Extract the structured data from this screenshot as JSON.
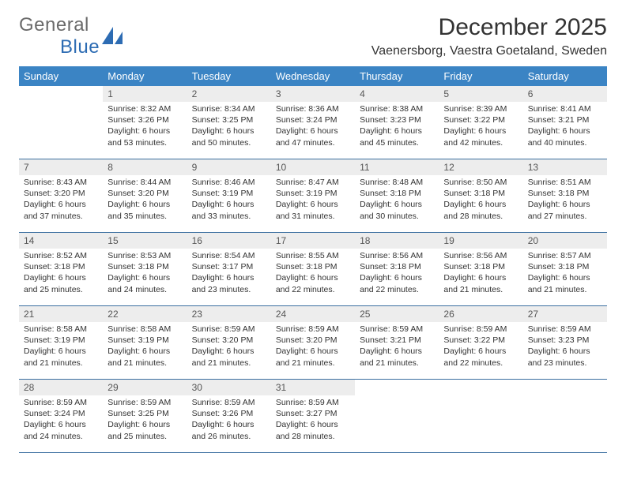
{
  "brand": {
    "word1": "General",
    "word2": "Blue"
  },
  "title": "December 2025",
  "location": "Vaenersborg, Vaestra Goetaland, Sweden",
  "colors": {
    "header_bg": "#3b84c4",
    "header_text": "#ffffff",
    "daynum_bg": "#ededed",
    "cell_border": "#3b6fa0",
    "brand_gray": "#6a6a6a",
    "brand_blue": "#2d6cb3",
    "text": "#333333",
    "background": "#ffffff"
  },
  "typography": {
    "title_fontsize": 30,
    "location_fontsize": 16,
    "header_fontsize": 13,
    "daynum_fontsize": 12,
    "body_fontsize": 10.5
  },
  "weekdays": [
    "Sunday",
    "Monday",
    "Tuesday",
    "Wednesday",
    "Thursday",
    "Friday",
    "Saturday"
  ],
  "start_offset": 1,
  "days": [
    {
      "n": 1,
      "sunrise": "8:32 AM",
      "sunset": "3:26 PM",
      "daylight": "6 hours and 53 minutes."
    },
    {
      "n": 2,
      "sunrise": "8:34 AM",
      "sunset": "3:25 PM",
      "daylight": "6 hours and 50 minutes."
    },
    {
      "n": 3,
      "sunrise": "8:36 AM",
      "sunset": "3:24 PM",
      "daylight": "6 hours and 47 minutes."
    },
    {
      "n": 4,
      "sunrise": "8:38 AM",
      "sunset": "3:23 PM",
      "daylight": "6 hours and 45 minutes."
    },
    {
      "n": 5,
      "sunrise": "8:39 AM",
      "sunset": "3:22 PM",
      "daylight": "6 hours and 42 minutes."
    },
    {
      "n": 6,
      "sunrise": "8:41 AM",
      "sunset": "3:21 PM",
      "daylight": "6 hours and 40 minutes."
    },
    {
      "n": 7,
      "sunrise": "8:43 AM",
      "sunset": "3:20 PM",
      "daylight": "6 hours and 37 minutes."
    },
    {
      "n": 8,
      "sunrise": "8:44 AM",
      "sunset": "3:20 PM",
      "daylight": "6 hours and 35 minutes."
    },
    {
      "n": 9,
      "sunrise": "8:46 AM",
      "sunset": "3:19 PM",
      "daylight": "6 hours and 33 minutes."
    },
    {
      "n": 10,
      "sunrise": "8:47 AM",
      "sunset": "3:19 PM",
      "daylight": "6 hours and 31 minutes."
    },
    {
      "n": 11,
      "sunrise": "8:48 AM",
      "sunset": "3:18 PM",
      "daylight": "6 hours and 30 minutes."
    },
    {
      "n": 12,
      "sunrise": "8:50 AM",
      "sunset": "3:18 PM",
      "daylight": "6 hours and 28 minutes."
    },
    {
      "n": 13,
      "sunrise": "8:51 AM",
      "sunset": "3:18 PM",
      "daylight": "6 hours and 27 minutes."
    },
    {
      "n": 14,
      "sunrise": "8:52 AM",
      "sunset": "3:18 PM",
      "daylight": "6 hours and 25 minutes."
    },
    {
      "n": 15,
      "sunrise": "8:53 AM",
      "sunset": "3:18 PM",
      "daylight": "6 hours and 24 minutes."
    },
    {
      "n": 16,
      "sunrise": "8:54 AM",
      "sunset": "3:17 PM",
      "daylight": "6 hours and 23 minutes."
    },
    {
      "n": 17,
      "sunrise": "8:55 AM",
      "sunset": "3:18 PM",
      "daylight": "6 hours and 22 minutes."
    },
    {
      "n": 18,
      "sunrise": "8:56 AM",
      "sunset": "3:18 PM",
      "daylight": "6 hours and 22 minutes."
    },
    {
      "n": 19,
      "sunrise": "8:56 AM",
      "sunset": "3:18 PM",
      "daylight": "6 hours and 21 minutes."
    },
    {
      "n": 20,
      "sunrise": "8:57 AM",
      "sunset": "3:18 PM",
      "daylight": "6 hours and 21 minutes."
    },
    {
      "n": 21,
      "sunrise": "8:58 AM",
      "sunset": "3:19 PM",
      "daylight": "6 hours and 21 minutes."
    },
    {
      "n": 22,
      "sunrise": "8:58 AM",
      "sunset": "3:19 PM",
      "daylight": "6 hours and 21 minutes."
    },
    {
      "n": 23,
      "sunrise": "8:59 AM",
      "sunset": "3:20 PM",
      "daylight": "6 hours and 21 minutes."
    },
    {
      "n": 24,
      "sunrise": "8:59 AM",
      "sunset": "3:20 PM",
      "daylight": "6 hours and 21 minutes."
    },
    {
      "n": 25,
      "sunrise": "8:59 AM",
      "sunset": "3:21 PM",
      "daylight": "6 hours and 21 minutes."
    },
    {
      "n": 26,
      "sunrise": "8:59 AM",
      "sunset": "3:22 PM",
      "daylight": "6 hours and 22 minutes."
    },
    {
      "n": 27,
      "sunrise": "8:59 AM",
      "sunset": "3:23 PM",
      "daylight": "6 hours and 23 minutes."
    },
    {
      "n": 28,
      "sunrise": "8:59 AM",
      "sunset": "3:24 PM",
      "daylight": "6 hours and 24 minutes."
    },
    {
      "n": 29,
      "sunrise": "8:59 AM",
      "sunset": "3:25 PM",
      "daylight": "6 hours and 25 minutes."
    },
    {
      "n": 30,
      "sunrise": "8:59 AM",
      "sunset": "3:26 PM",
      "daylight": "6 hours and 26 minutes."
    },
    {
      "n": 31,
      "sunrise": "8:59 AM",
      "sunset": "3:27 PM",
      "daylight": "6 hours and 28 minutes."
    }
  ],
  "labels": {
    "sunrise": "Sunrise:",
    "sunset": "Sunset:",
    "daylight": "Daylight:"
  }
}
